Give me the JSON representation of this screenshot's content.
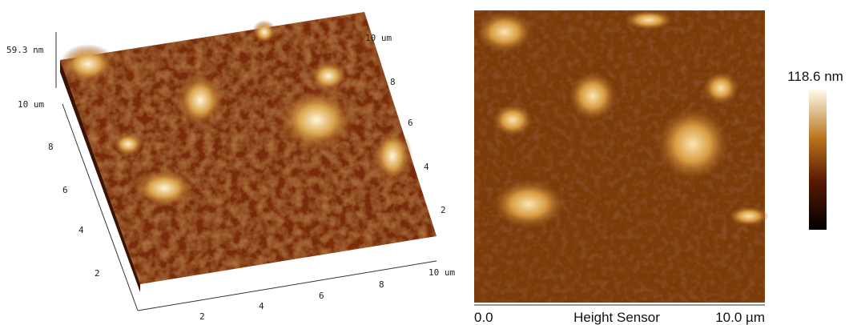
{
  "view3d": {
    "z_label": "59.3 nm",
    "left_axis": {
      "end_label": "10 um",
      "ticks": [
        "8",
        "6",
        "4",
        "2"
      ]
    },
    "bottom_axis": {
      "ticks": [
        "2",
        "4",
        "6",
        "8"
      ],
      "end_label": "10 um"
    },
    "back_axis": {
      "end_label": "10 um",
      "ticks": [
        "8",
        "6",
        "4",
        "2"
      ]
    }
  },
  "height_map": {
    "scale_start": "0.0",
    "channel": "Height Sensor",
    "scale_end": "10.0 µm",
    "color_max": "118.6 nm"
  }
}
